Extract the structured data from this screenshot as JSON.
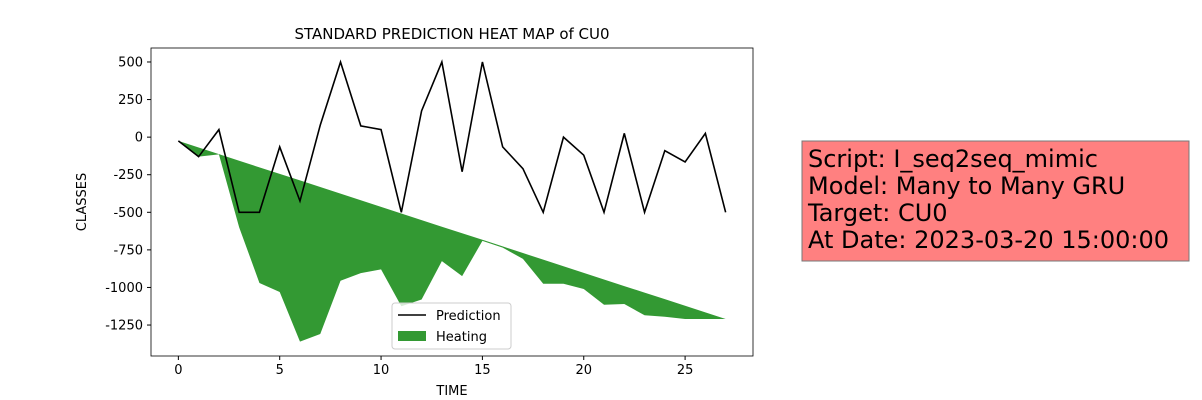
{
  "chart_data": {
    "type": "line",
    "title": "STANDARD PREDICTION HEAT MAP of CU0",
    "x_label": "TIME",
    "y_label": "CLASSES",
    "x": [
      0,
      1,
      2,
      3,
      4,
      5,
      6,
      7,
      8,
      9,
      10,
      11,
      12,
      13,
      14,
      15,
      16,
      17,
      18,
      19,
      20,
      21,
      22,
      23,
      24,
      25,
      26,
      27
    ],
    "series": [
      {
        "name": "Prediction",
        "color": "#000000",
        "values": [
          -25,
          -130,
          50,
          -500,
          -500,
          -65,
          -425,
          80,
          500,
          75,
          50,
          -500,
          175,
          500,
          -230,
          500,
          -65,
          -210,
          -500,
          0,
          -120,
          -500,
          25,
          -500,
          -90,
          -165,
          25,
          -500
        ]
      }
    ],
    "fill": {
      "name": "Heating",
      "color": "#339933",
      "upper": [
        -25,
        -69,
        -113,
        -157,
        -201,
        -244,
        -288,
        -332,
        -376,
        -420,
        -464,
        -508,
        -552,
        -596,
        -639,
        -683,
        -727,
        -771,
        -815,
        -859,
        -903,
        -947,
        -991,
        -1034,
        -1078,
        -1122,
        -1166,
        -1210
      ],
      "lower": [
        -25,
        -130,
        -115,
        -600,
        -970,
        -1030,
        -1360,
        -1310,
        -955,
        -905,
        -880,
        -1125,
        -1080,
        -825,
        -925,
        -690,
        -735,
        -810,
        -975,
        -975,
        -1010,
        -1115,
        -1110,
        -1185,
        -1195,
        -1210,
        -1210,
        -1210
      ]
    },
    "xlim": [
      -1.35,
      28.35
    ],
    "ylim": [
      -1456,
      593
    ],
    "xticks": [
      0,
      5,
      10,
      15,
      20,
      25
    ],
    "yticks": [
      500,
      250,
      0,
      -250,
      -500,
      -750,
      -1000,
      -1250
    ],
    "legend": "lower center",
    "annotation": [
      "Script: I_seq2seq_mimic",
      "Model: Many to Many GRU",
      "Target: CU0",
      "At Date: 2023-03-20 15:00:00"
    ],
    "annotation_color": "#ff8080"
  }
}
